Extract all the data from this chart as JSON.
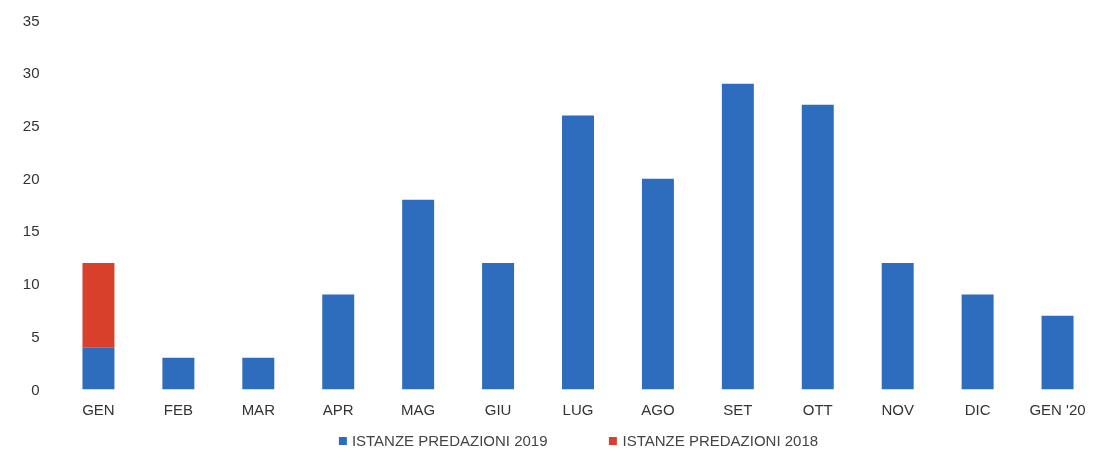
{
  "chart_data": {
    "type": "bar",
    "stacked": true,
    "categories": [
      "GEN",
      "FEB",
      "MAR",
      "APR",
      "MAG",
      "GIU",
      "LUG",
      "AGO",
      "SET",
      "OTT",
      "NOV",
      "DIC",
      "GEN '20"
    ],
    "series": [
      {
        "name": "ISTANZE PREDAZIONI 2019",
        "color": "#2e6dbd",
        "values": [
          4,
          3,
          3,
          9,
          18,
          12,
          26,
          20,
          29,
          27,
          12,
          9,
          7
        ]
      },
      {
        "name": "ISTANZE PREDAZIONI 2018",
        "color": "#d9402c",
        "values": [
          8,
          null,
          null,
          null,
          null,
          null,
          null,
          null,
          null,
          null,
          null,
          null,
          null
        ]
      }
    ],
    "ylim": [
      0,
      35
    ],
    "yticks": [
      0,
      5,
      10,
      15,
      20,
      25,
      30,
      35
    ],
    "grid": false,
    "legend": "bottom"
  }
}
